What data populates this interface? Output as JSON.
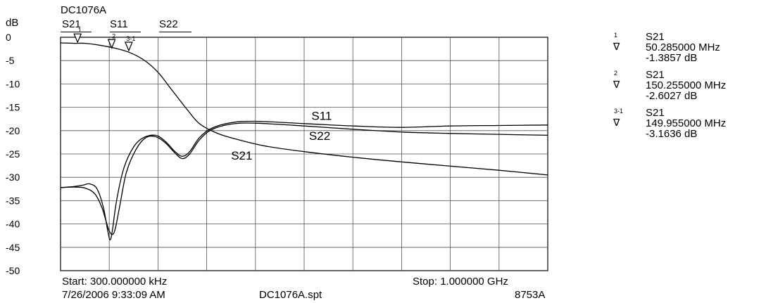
{
  "header": {
    "title": "DC1076A",
    "trace_tabs": [
      "S21",
      "S11",
      "S22"
    ]
  },
  "chart_data": {
    "type": "line",
    "ylabel": "dB",
    "ylim": [
      -50,
      0
    ],
    "yticks": [
      "0",
      "-5",
      "-10",
      "-15",
      "-20",
      "-25",
      "-30",
      "-35",
      "-40",
      "-45",
      "-50"
    ],
    "grid": true,
    "x_axis": {
      "start": "300.000000 kHz",
      "stop": "1.000000 GHz",
      "divisions": 10
    },
    "series": [
      {
        "name": "S21",
        "points": [
          [
            0,
            -1.2
          ],
          [
            0.3,
            -1.3
          ],
          [
            0.5,
            -1.3
          ],
          [
            0.8,
            -1.7
          ],
          [
            1.1,
            -2.3
          ],
          [
            1.4,
            -3.2
          ],
          [
            1.7,
            -4.8
          ],
          [
            2.0,
            -7.5
          ],
          [
            2.3,
            -11.5
          ],
          [
            2.6,
            -15.5
          ],
          [
            2.85,
            -18.5
          ],
          [
            3.2,
            -20.5
          ],
          [
            3.6,
            -21.8
          ],
          [
            4.2,
            -23.3
          ],
          [
            5.0,
            -24.5
          ],
          [
            6.0,
            -25.7
          ],
          [
            7.0,
            -26.7
          ],
          [
            8.0,
            -27.6
          ],
          [
            9.0,
            -28.5
          ],
          [
            10.0,
            -29.5
          ]
        ]
      },
      {
        "name": "S11",
        "points": [
          [
            0,
            -32.2
          ],
          [
            0.25,
            -32.0
          ],
          [
            0.45,
            -31.7
          ],
          [
            0.6,
            -31.4
          ],
          [
            0.75,
            -32.5
          ],
          [
            0.88,
            -36.5
          ],
          [
            0.97,
            -41.5
          ],
          [
            1.02,
            -43.4
          ],
          [
            1.07,
            -41.0
          ],
          [
            1.15,
            -35.0
          ],
          [
            1.3,
            -28.0
          ],
          [
            1.5,
            -23.5
          ],
          [
            1.7,
            -21.5
          ],
          [
            1.95,
            -21.0
          ],
          [
            2.15,
            -22.3
          ],
          [
            2.35,
            -24.5
          ],
          [
            2.5,
            -25.5
          ],
          [
            2.65,
            -24.5
          ],
          [
            2.85,
            -21.5
          ],
          [
            3.1,
            -19.5
          ],
          [
            3.5,
            -18.3
          ],
          [
            4.0,
            -18.0
          ],
          [
            5.0,
            -18.5
          ],
          [
            6.0,
            -19.0
          ],
          [
            7.0,
            -19.3
          ],
          [
            8.0,
            -19.0
          ],
          [
            9.0,
            -18.9
          ],
          [
            10.0,
            -18.8
          ]
        ]
      },
      {
        "name": "S22",
        "points": [
          [
            0,
            -32.2
          ],
          [
            0.3,
            -32.1
          ],
          [
            0.5,
            -32.3
          ],
          [
            0.7,
            -33.5
          ],
          [
            0.85,
            -36.5
          ],
          [
            1.0,
            -41.5
          ],
          [
            1.1,
            -41.8
          ],
          [
            1.2,
            -37.0
          ],
          [
            1.35,
            -29.0
          ],
          [
            1.55,
            -24.0
          ],
          [
            1.75,
            -21.5
          ],
          [
            1.95,
            -21.3
          ],
          [
            2.15,
            -22.6
          ],
          [
            2.35,
            -24.8
          ],
          [
            2.5,
            -26.0
          ],
          [
            2.65,
            -25.0
          ],
          [
            2.85,
            -22.0
          ],
          [
            3.1,
            -19.8
          ],
          [
            3.5,
            -18.6
          ],
          [
            4.0,
            -18.4
          ],
          [
            5.0,
            -19.0
          ],
          [
            6.0,
            -19.7
          ],
          [
            7.0,
            -20.3
          ],
          [
            8.0,
            -20.6
          ],
          [
            9.0,
            -20.8
          ],
          [
            10.0,
            -21.0
          ]
        ]
      }
    ],
    "trace_labels": [
      {
        "name": "S11",
        "x": 5.15,
        "y": -17.7
      },
      {
        "name": "S22",
        "x": 5.1,
        "y": -22.0
      },
      {
        "name": "S21",
        "x": 3.5,
        "y": -26.2
      }
    ],
    "markers": [
      {
        "id": "1",
        "x": 0.35,
        "y": -1.3857
      },
      {
        "id": "2",
        "x": 1.05,
        "y": -2.6027
      },
      {
        "id": "3-1",
        "x": 1.4,
        "y": -3.1636
      }
    ]
  },
  "marker_table": [
    {
      "id": "1",
      "trace": "S21",
      "freq": "50.285000 MHz",
      "value": "-1.3857 dB"
    },
    {
      "id": "2",
      "trace": "S21",
      "freq": "150.255000 MHz",
      "value": "-2.6027 dB"
    },
    {
      "id": "3-1",
      "trace": "S21",
      "freq": "149.955000 MHz",
      "value": "-3.1636 dB"
    }
  ],
  "marker_symbol": "∇",
  "footer": {
    "start": "Start: 300.000000 kHz",
    "stop": "Stop: 1.000000 GHz",
    "timestamp": "7/26/2006 9:33:09 AM",
    "filename": "DC1076A.spt",
    "instrument": "8753A"
  }
}
